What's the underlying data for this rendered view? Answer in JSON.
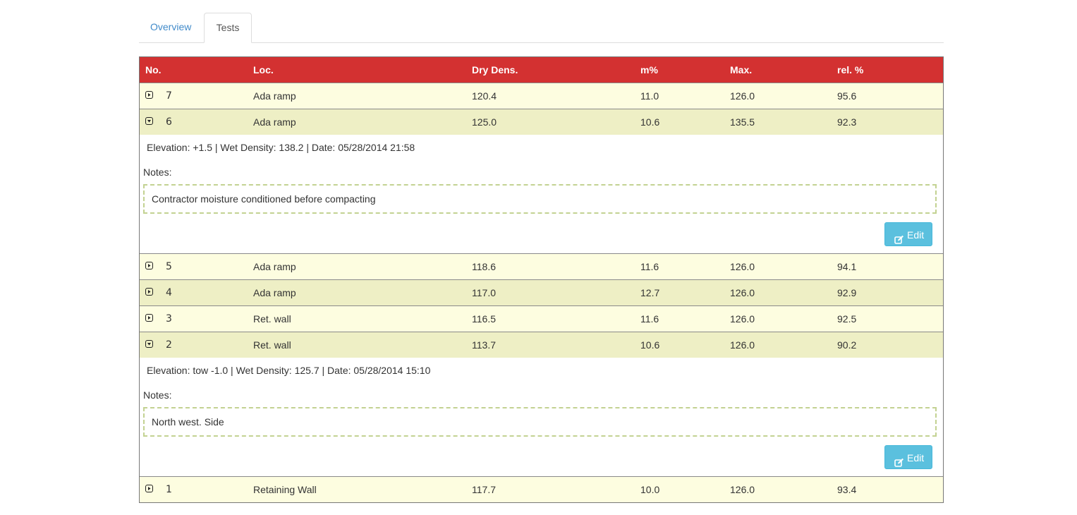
{
  "tabs": [
    {
      "label": "Overview",
      "active": false
    },
    {
      "label": "Tests",
      "active": true
    }
  ],
  "table": {
    "headers": {
      "no": "No.",
      "loc": "Loc.",
      "dry": "Dry Dens.",
      "m": "m%",
      "max": "Max.",
      "rel": "rel. %"
    },
    "rows": [
      {
        "no": "7",
        "loc": "Ada ramp",
        "dry": "120.4",
        "m": "11.0",
        "max": "126.0",
        "rel": "95.6",
        "expanded": false
      },
      {
        "no": "6",
        "loc": "Ada ramp",
        "dry": "125.0",
        "m": "10.6",
        "max": "135.5",
        "rel": "92.3",
        "expanded": true,
        "detail": {
          "meta": "Elevation: +1.5 | Wet Density: 138.2 | Date: 05/28/2014 21:58",
          "notes_label": "Notes:",
          "notes": "Contractor moisture conditioned before compacting",
          "edit_label": "Edit"
        }
      },
      {
        "no": "5",
        "loc": "Ada ramp",
        "dry": "118.6",
        "m": "11.6",
        "max": "126.0",
        "rel": "94.1",
        "expanded": false
      },
      {
        "no": "4",
        "loc": "Ada ramp",
        "dry": "117.0",
        "m": "12.7",
        "max": "126.0",
        "rel": "92.9",
        "expanded": false
      },
      {
        "no": "3",
        "loc": "Ret. wall",
        "dry": "116.5",
        "m": "11.6",
        "max": "126.0",
        "rel": "92.5",
        "expanded": false
      },
      {
        "no": "2",
        "loc": "Ret. wall",
        "dry": "113.7",
        "m": "10.6",
        "max": "126.0",
        "rel": "90.2",
        "expanded": true,
        "detail": {
          "meta": "Elevation: tow -1.0 | Wet Density: 125.7 | Date: 05/28/2014 15:10",
          "notes_label": "Notes:",
          "notes": "North west. Side",
          "edit_label": "Edit"
        }
      },
      {
        "no": "1",
        "loc": "Retaining Wall",
        "dry": "117.7",
        "m": "10.0",
        "max": "126.0",
        "rel": "93.4",
        "expanded": false
      }
    ]
  },
  "colors": {
    "header_bg": "#d33131",
    "row_odd": "#fdfde0",
    "row_even": "#eeefc5",
    "button": "#5bc0de",
    "link": "#428bca"
  },
  "icons": {
    "collapsed": "caret-right-square-icon",
    "expanded": "caret-down-square-icon",
    "edit": "edit-square-icon"
  }
}
